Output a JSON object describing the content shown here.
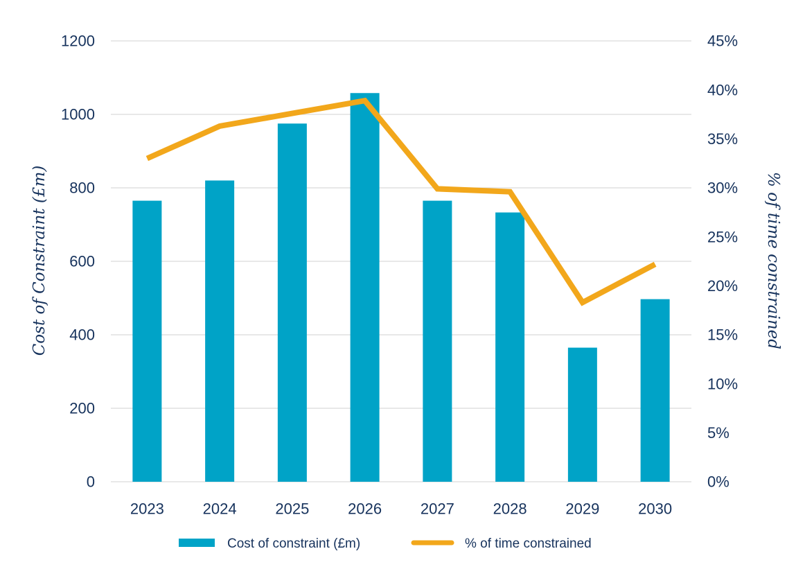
{
  "chart_data": {
    "type": "bar",
    "categories": [
      "2023",
      "2024",
      "2025",
      "2026",
      "2027",
      "2028",
      "2029",
      "2030"
    ],
    "series": [
      {
        "name": "Cost of constraint (£m)",
        "type": "bar",
        "axis": "left",
        "values": [
          765,
          820,
          975,
          1058,
          765,
          733,
          365,
          497
        ],
        "color": "#00a3c7"
      },
      {
        "name": "% of time constrained",
        "type": "line",
        "axis": "right",
        "values": [
          33.0,
          36.3,
          37.6,
          38.9,
          29.9,
          29.6,
          18.3,
          22.2
        ],
        "color": "#f2a71b"
      }
    ],
    "ylabel": "Cost of Constraint (£m)",
    "y2label": "% of time constrained",
    "ylim": [
      0,
      1200
    ],
    "y_ticks": [
      "0",
      "200",
      "400",
      "600",
      "800",
      "1000",
      "1200"
    ],
    "y2lim": [
      0,
      45
    ],
    "y2_ticks": [
      "0%",
      "5%",
      "10%",
      "15%",
      "20%",
      "25%",
      "30%",
      "35%",
      "40%",
      "45%"
    ],
    "grid": true,
    "legend_position": "bottom",
    "text_color": "#16325c",
    "grid_color": "#d9d9d9"
  }
}
